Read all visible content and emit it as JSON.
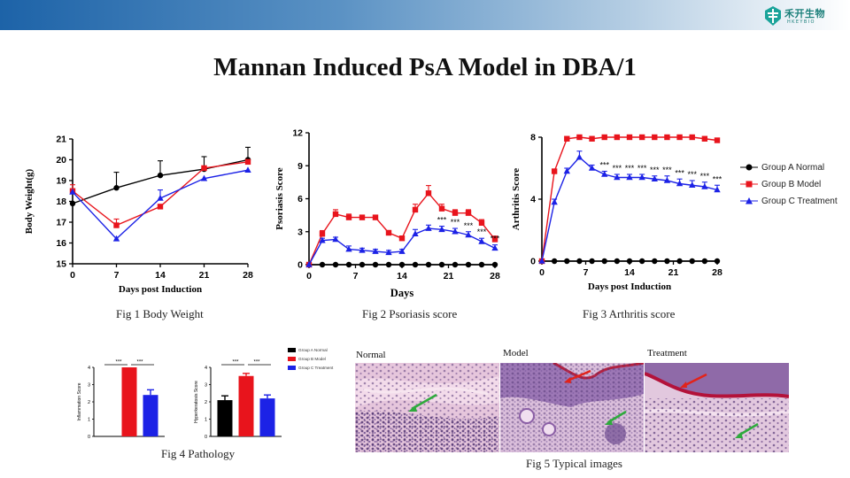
{
  "title": "Mannan Induced PsA Model  in DBA/1",
  "logo": {
    "cn": "禾开生物",
    "en": "HKEYBIO"
  },
  "colors": {
    "normal": "#000000",
    "model": "#e8141c",
    "treatment": "#1c22e6"
  },
  "legend": {
    "items": [
      "Group A Normal",
      "Group B Model",
      "Group C Treatment"
    ]
  },
  "charts": {
    "body_weight": {
      "caption": "Fig 1 Body Weight",
      "xlabel": "Days post Induction",
      "ylabel": "Body Weight(g)",
      "xticks": [
        "0",
        "7",
        "14",
        "21",
        "28"
      ],
      "yticks": [
        "15",
        "16",
        "17",
        "18",
        "19",
        "20",
        "21"
      ]
    },
    "psoriasis": {
      "caption": "Fig 2 Psoriasis score",
      "xlabel": "Days",
      "ylabel": "Psoriasis Score",
      "xticks": [
        "0",
        "7",
        "14",
        "21",
        "28"
      ],
      "yticks": [
        "0",
        "3",
        "6",
        "9",
        "12"
      ]
    },
    "arthritis": {
      "caption": "Fig 3 Arthritis score",
      "xlabel": "Days post Induction",
      "ylabel": "Arthritis Score",
      "xticks": [
        "0",
        "7",
        "14",
        "21",
        "28"
      ],
      "yticks": [
        "0",
        "4",
        "8"
      ]
    },
    "inflammation": {
      "ylabel": "Inflammation Score",
      "yticks": [
        "0",
        "1",
        "2",
        "3",
        "4"
      ]
    },
    "hyperkeratosis": {
      "ylabel": "Hyperkeratosis Score",
      "yticks": [
        "0",
        "1",
        "2",
        "3",
        "4"
      ]
    },
    "pathology_caption": "Fig 4 Pathology",
    "images_caption": "Fig 5 Typical images"
  },
  "images": {
    "labels": [
      "Normal",
      "Model",
      "Treatment"
    ]
  },
  "chart_data": [
    {
      "type": "line",
      "title": "Fig 1 Body Weight",
      "xlabel": "Days post Induction",
      "ylabel": "Body Weight(g)",
      "xlim": [
        0,
        28
      ],
      "ylim": [
        15,
        21
      ],
      "series": [
        {
          "name": "Group A Normal",
          "x": [
            0,
            7,
            14,
            21,
            28
          ],
          "values": [
            17.9,
            18.65,
            19.25,
            19.55,
            20.0
          ],
          "err": [
            0,
            0.75,
            0.7,
            0.6,
            0.6
          ]
        },
        {
          "name": "Group B Model",
          "x": [
            0,
            7,
            14,
            21,
            28
          ],
          "values": [
            18.5,
            16.85,
            17.75,
            19.6,
            19.9
          ],
          "err": [
            0.3,
            0.3,
            0,
            0,
            0
          ]
        },
        {
          "name": "Group C Treatment",
          "x": [
            0,
            7,
            14,
            21,
            28
          ],
          "values": [
            18.45,
            16.2,
            18.15,
            19.1,
            19.5
          ],
          "err": [
            0,
            0,
            0.4,
            0,
            0
          ]
        }
      ]
    },
    {
      "type": "line",
      "title": "Fig 2 Psoriasis score",
      "xlabel": "Days",
      "ylabel": "Psoriasis Score",
      "xlim": [
        0,
        28
      ],
      "ylim": [
        0,
        12
      ],
      "series": [
        {
          "name": "Group A Normal",
          "x": [
            0,
            2,
            4,
            6,
            8,
            10,
            12,
            14,
            16,
            18,
            20,
            22,
            24,
            26,
            28
          ],
          "values": [
            0,
            0,
            0,
            0,
            0,
            0,
            0,
            0,
            0,
            0,
            0,
            0,
            0,
            0,
            0
          ]
        },
        {
          "name": "Group B Model",
          "x": [
            0,
            2,
            4,
            6,
            8,
            10,
            12,
            14,
            16,
            18,
            20,
            22,
            24,
            26,
            28
          ],
          "values": [
            0,
            2.8,
            4.6,
            4.3,
            4.3,
            4.3,
            2.9,
            2.4,
            5.0,
            6.5,
            5.1,
            4.7,
            4.7,
            3.8,
            2.3
          ],
          "err": [
            0,
            0.3,
            0.4,
            0.3,
            0.2,
            0.2,
            0.2,
            0.2,
            0.5,
            0.7,
            0.4,
            0.3,
            0.3,
            0.3,
            0.3
          ]
        },
        {
          "name": "Group C Treatment",
          "x": [
            0,
            2,
            4,
            6,
            8,
            10,
            12,
            14,
            16,
            18,
            20,
            22,
            24,
            26,
            28
          ],
          "values": [
            0,
            2.2,
            2.3,
            1.4,
            1.3,
            1.2,
            1.1,
            1.2,
            2.8,
            3.3,
            3.2,
            3.0,
            2.7,
            2.1,
            1.5
          ],
          "err": [
            0,
            0.2,
            0.2,
            0.3,
            0.2,
            0.2,
            0.2,
            0.2,
            0.4,
            0.3,
            0.3,
            0.3,
            0.3,
            0.3,
            0.3
          ]
        }
      ],
      "annotations": [
        "***",
        "***",
        "***",
        "***",
        "***"
      ]
    },
    {
      "type": "line",
      "title": "Fig 3 Arthritis score",
      "xlabel": "Days post Induction",
      "ylabel": "Arthritis Score",
      "xlim": [
        0,
        28
      ],
      "ylim": [
        0,
        8
      ],
      "series": [
        {
          "name": "Group A Normal",
          "x": [
            0,
            2,
            4,
            6,
            8,
            10,
            12,
            14,
            16,
            18,
            20,
            22,
            24,
            26,
            28
          ],
          "values": [
            0,
            0,
            0,
            0,
            0,
            0,
            0,
            0,
            0,
            0,
            0,
            0,
            0,
            0,
            0
          ]
        },
        {
          "name": "Group B Model",
          "x": [
            0,
            2,
            4,
            6,
            8,
            10,
            12,
            14,
            16,
            18,
            20,
            22,
            24,
            26,
            28
          ],
          "values": [
            0,
            5.8,
            7.9,
            8.0,
            7.9,
            8.0,
            8.0,
            8.0,
            8.0,
            8.0,
            8.0,
            8.0,
            8.0,
            7.9,
            7.8
          ]
        },
        {
          "name": "Group C Treatment",
          "x": [
            0,
            2,
            4,
            6,
            8,
            10,
            12,
            14,
            16,
            18,
            20,
            22,
            24,
            26,
            28
          ],
          "values": [
            0,
            3.8,
            5.8,
            6.7,
            6.0,
            5.6,
            5.4,
            5.4,
            5.4,
            5.3,
            5.2,
            5.0,
            4.9,
            4.8,
            4.6
          ],
          "err": [
            0,
            0.2,
            0.2,
            0.4,
            0.2,
            0.2,
            0.2,
            0.2,
            0.2,
            0.2,
            0.3,
            0.3,
            0.3,
            0.3,
            0.3
          ]
        }
      ],
      "annotations": [
        "***",
        "***",
        "***",
        "***",
        "***",
        "***",
        "***",
        "***",
        "***",
        "***"
      ]
    },
    {
      "type": "bar",
      "title": "Inflammation Score",
      "categories": [
        "Group A Normal",
        "Group B Model",
        "Group C Treatment"
      ],
      "values": [
        0,
        4.0,
        2.4
      ],
      "err": [
        0,
        0,
        0.3
      ],
      "ylim": [
        0,
        4
      ],
      "annotations": [
        "***",
        "***"
      ]
    },
    {
      "type": "bar",
      "title": "Hyperkeratosis Score",
      "categories": [
        "Group A Normal",
        "Group B Model",
        "Group C Treatment"
      ],
      "values": [
        2.1,
        3.5,
        2.2
      ],
      "err": [
        0.25,
        0.15,
        0.2
      ],
      "ylim": [
        0,
        4
      ],
      "annotations": [
        "***",
        "***"
      ]
    }
  ]
}
